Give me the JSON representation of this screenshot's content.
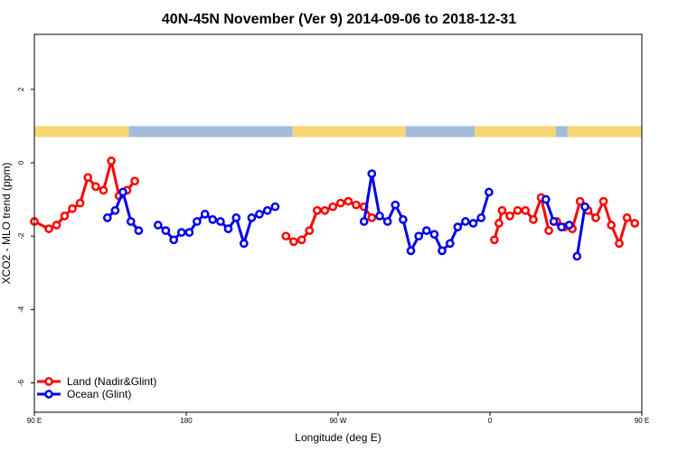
{
  "chart_data": {
    "type": "line",
    "title": "40N-45N November (Ver 9)   2014-09-06 to 2018-12-31",
    "xlabel": "Longitude (deg E)",
    "ylabel": "XCO2 - MLO trend (ppm)",
    "xlim": [
      90,
      450
    ],
    "ylim": [
      -6.8,
      3.5
    ],
    "x_ticks": [
      {
        "value": 90,
        "label": "90 E"
      },
      {
        "value": 180,
        "label": "180"
      },
      {
        "value": 270,
        "label": "90 W"
      },
      {
        "value": 360,
        "label": "0"
      },
      {
        "value": 450,
        "label": "90 E"
      },
      {
        "value": 540,
        "label": "180"
      }
    ],
    "y_ticks": [
      {
        "value": 2,
        "label": "2"
      },
      {
        "value": 0,
        "label": "0"
      },
      {
        "value": -2,
        "label": "-2"
      },
      {
        "value": -4,
        "label": "-4"
      },
      {
        "value": -6,
        "label": "-6"
      }
    ],
    "land_ocean_strip": {
      "y_range": [
        0.7,
        1.0
      ],
      "land_color": "#f7d774",
      "ocean_color": "#a4bcdc",
      "segments": [
        {
          "type": "land",
          "from": 90,
          "to": 146
        },
        {
          "type": "ocean",
          "from": 146,
          "to": 243
        },
        {
          "type": "land",
          "from": 243,
          "to": 310
        },
        {
          "type": "ocean",
          "from": 310,
          "to": 351
        },
        {
          "type": "land",
          "from": 351,
          "to": 399
        },
        {
          "type": "ocean",
          "from": 399,
          "to": 406
        },
        {
          "type": "land",
          "from": 406,
          "to": 500
        },
        {
          "type": "ocean",
          "from": 500,
          "to": 540
        }
      ]
    },
    "legend": {
      "position": "bottom-left"
    },
    "series": [
      {
        "name": "Land (Nadir&Glint)",
        "color": "#ff0000",
        "segments": [
          {
            "x": [
              90,
              98.6,
              103.2,
              107.9,
              112.5,
              117.1,
              121.7,
              126.4,
              131,
              135.6,
              140.2
            ],
            "y": [
              -1.6,
              -1.8,
              -1.7,
              -1.45,
              -1.25,
              -1.1,
              -0.4,
              -0.65,
              -0.75,
              0.05,
              -0.9
            ]
          },
          {
            "x": [
              144.9,
              149.5
            ],
            "y": [
              -0.75,
              -0.5
            ]
          },
          {
            "x": [
              239.1,
              243.7,
              248.4,
              253,
              257.6,
              262.2,
              266.9,
              271.5,
              276.1,
              280.7,
              285.4,
              290
            ],
            "y": [
              -2.0,
              -2.15,
              -2.1,
              -1.85,
              -1.3,
              -1.3,
              -1.2,
              -1.1,
              -1.05,
              -1.15,
              -1.2,
              -1.5
            ]
          },
          {
            "x": [
              362.6,
              365.3,
              367.2,
              371.8,
              376.4,
              381,
              385.7,
              390.3,
              394.9
            ],
            "y": [
              -2.1,
              -1.65,
              -1.3,
              -1.45,
              -1.3,
              -1.3,
              -1.55,
              -0.95,
              -1.85
            ]
          },
          {
            "x": [
              399.6,
              404.2,
              408.8,
              413.4,
              418.1,
              422.7,
              427.3,
              431.9,
              436.6,
              441.2,
              445.8,
              450.4,
              455.1,
              459.7,
              464.3,
              468.9,
              473.6,
              478.2,
              482.8,
              487.4,
              492.1,
              496.7
            ],
            "y": [
              -1.6,
              -1.75,
              -1.8,
              -1.05,
              -1.3,
              -1.5,
              -1.05,
              -1.7,
              -2.2,
              -1.5,
              -1.65,
              -1.6,
              -1.8,
              -1.7,
              -1.45,
              -1.2,
              -1.1,
              -0.4,
              -0.65,
              -0.75,
              0.05,
              -0.9
            ]
          },
          {
            "x": [
              501.3,
              505.9
            ],
            "y": [
              -0.75,
              -0.5
            ]
          }
        ]
      },
      {
        "name": "Ocean (Glint)",
        "color": "#0000ee",
        "segments": [
          {
            "x": [
              133.3,
              137.9,
              142.5,
              147.2,
              151.8
            ],
            "y": [
              -1.5,
              -1.3,
              -0.8,
              -1.6,
              -1.85
            ]
          },
          {
            "x": [
              163.3,
              167.9,
              172.6,
              177.2,
              181.8,
              186.4,
              191.1,
              195.7,
              200.3,
              204.9,
              209.6,
              214.2,
              218.8,
              223.4,
              228.1,
              232.7
            ],
            "y": [
              -1.7,
              -1.85,
              -2.1,
              -1.9,
              -1.9,
              -1.6,
              -1.4,
              -1.55,
              -1.6,
              -1.8,
              -1.5,
              -2.2,
              -1.5,
              -1.4,
              -1.3,
              -1.2
            ]
          },
          {
            "x": [
              285.4,
              290,
              294.6,
              299.3,
              303.9,
              308.5,
              313.1,
              317.8,
              322.4,
              327,
              331.6,
              336.3,
              340.9,
              345.5,
              350.1,
              354.8,
              359.4
            ],
            "y": [
              -1.6,
              -0.3,
              -1.45,
              -1.6,
              -1.15,
              -1.55,
              -2.4,
              -2.0,
              -1.85,
              -1.95,
              -2.4,
              -2.2,
              -1.75,
              -1.6,
              -1.65,
              -1.5,
              -0.8
            ]
          },
          {
            "x": [
              393.1,
              397.8,
              402.4,
              407
            ],
            "y": [
              -1.0,
              -1.6,
              -1.75,
              -1.7
            ]
          },
          {
            "x": [
              411.6,
              416.3
            ],
            "y": [
              -2.55,
              -1.2
            ]
          },
          {
            "x": [
              494.4,
              499,
              503.6,
              508.3,
              512.9
            ],
            "y": [
              -1.5,
              -1.3,
              -0.8,
              -1.6,
              -1.85
            ]
          },
          {
            "x": [
              524.4,
              529.1,
              533.7,
              538.3
            ],
            "y": [
              -1.7,
              -1.85,
              -2.1,
              -1.9
            ]
          }
        ]
      }
    ]
  }
}
